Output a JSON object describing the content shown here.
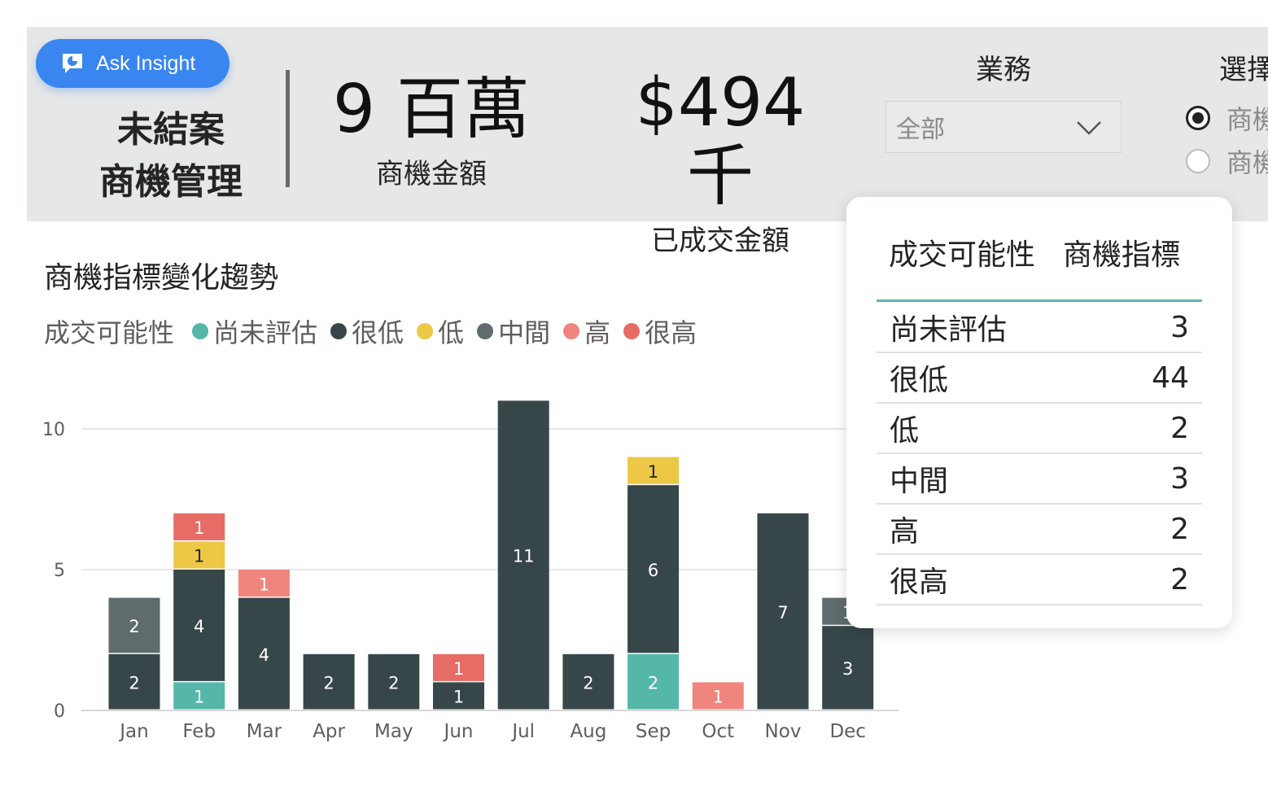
{
  "header": {
    "ask_insight_label": "Ask Insight",
    "title_line1": "未結案",
    "title_line2": "商機管理",
    "kpi1": {
      "value": "9 百萬",
      "caption": "商機金額"
    },
    "kpi2": {
      "value": "$494 千",
      "caption": "已成交金額"
    },
    "business_slicer": {
      "title": "業務",
      "selected": "全部"
    },
    "select_slicer": {
      "title": "選擇",
      "options": [
        {
          "label": "商機",
          "checked": true
        },
        {
          "label": "商機",
          "checked": false
        }
      ]
    }
  },
  "chart_title": "商機指標變化趨勢",
  "legend": {
    "title": "成交可能性",
    "items": [
      {
        "label": "尚未評估",
        "color": "#55b7a9"
      },
      {
        "label": "很低",
        "color": "#374649"
      },
      {
        "label": "低",
        "color": "#ecc846"
      },
      {
        "label": "中間",
        "color": "#5f6b6d"
      },
      {
        "label": "高",
        "color": "#f0857e"
      },
      {
        "label": "很高",
        "color": "#e66c65"
      }
    ]
  },
  "chart_data": {
    "type": "bar",
    "stacked": true,
    "categories": [
      "Jan",
      "Feb",
      "Mar",
      "Apr",
      "May",
      "Jun",
      "Jul",
      "Aug",
      "Sep",
      "Oct",
      "Nov",
      "Dec"
    ],
    "series": [
      {
        "name": "尚未評估",
        "values": [
          0,
          1,
          0,
          0,
          0,
          0,
          0,
          0,
          2,
          0,
          0,
          0
        ]
      },
      {
        "name": "很低",
        "values": [
          2,
          4,
          4,
          2,
          2,
          1,
          11,
          2,
          6,
          0,
          7,
          3
        ]
      },
      {
        "name": "低",
        "values": [
          0,
          1,
          0,
          0,
          0,
          0,
          0,
          0,
          1,
          0,
          0,
          0
        ]
      },
      {
        "name": "中間",
        "values": [
          2,
          0,
          0,
          0,
          0,
          0,
          0,
          0,
          0,
          0,
          0,
          1
        ]
      },
      {
        "name": "高",
        "values": [
          0,
          0,
          1,
          0,
          0,
          0,
          0,
          0,
          0,
          1,
          0,
          0
        ]
      },
      {
        "name": "很高",
        "values": [
          0,
          1,
          0,
          0,
          0,
          1,
          0,
          0,
          0,
          0,
          0,
          0
        ]
      }
    ],
    "yticks": [
      0,
      5,
      10
    ],
    "ylim": [
      0,
      11
    ],
    "grid": true,
    "legend_position": "top-left"
  },
  "tooltip": {
    "col1": "成交可能性",
    "col2": "商機指標",
    "rows": [
      {
        "label": "尚未評估",
        "value": "3"
      },
      {
        "label": "很低",
        "value": "44"
      },
      {
        "label": "低",
        "value": "2"
      },
      {
        "label": "中間",
        "value": "3"
      },
      {
        "label": "高",
        "value": "2"
      },
      {
        "label": "很高",
        "value": "2"
      }
    ]
  }
}
